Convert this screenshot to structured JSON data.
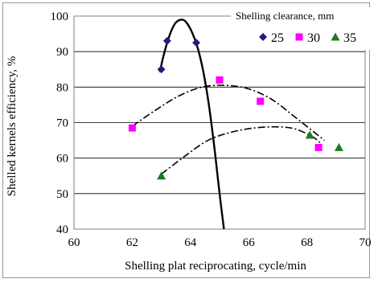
{
  "chart_data": {
    "type": "scatter",
    "title": "",
    "xlabel": "Shelling plat reciprocating, cycle/min",
    "ylabel": "Shelled kernels efficiency, %",
    "xlim": [
      60,
      70
    ],
    "ylim": [
      40,
      100
    ],
    "x_ticks": [
      60,
      62,
      64,
      66,
      68,
      70
    ],
    "y_ticks": [
      40,
      50,
      60,
      70,
      80,
      90,
      100
    ],
    "grid": "horizontal",
    "legend": {
      "title": "Shelling clearance, mm",
      "position": "top-right"
    },
    "series": [
      {
        "name": "25",
        "color": "#1f1f7a",
        "marker": "diamond",
        "line_style": "solid",
        "points": [
          [
            63.0,
            85
          ],
          [
            63.2,
            93
          ],
          [
            64.2,
            92.5
          ]
        ],
        "trend": [
          [
            62.95,
            84.2
          ],
          [
            63.05,
            88
          ],
          [
            63.2,
            92.5
          ],
          [
            63.35,
            96
          ],
          [
            63.5,
            98.2
          ],
          [
            63.7,
            99
          ],
          [
            63.85,
            98.3
          ],
          [
            64.05,
            95.5
          ],
          [
            64.25,
            91
          ],
          [
            64.45,
            84
          ],
          [
            64.65,
            74
          ],
          [
            64.85,
            61
          ],
          [
            65.0,
            50
          ],
          [
            65.15,
            40
          ]
        ]
      },
      {
        "name": "30",
        "color": "#ff00ff",
        "marker": "square",
        "line_style": "dashdot",
        "points": [
          [
            62.0,
            68.5
          ],
          [
            65.0,
            82
          ],
          [
            66.4,
            76
          ],
          [
            68.4,
            63
          ]
        ],
        "trend": [
          [
            62.0,
            69
          ],
          [
            62.8,
            73.5
          ],
          [
            63.6,
            77.5
          ],
          [
            64.4,
            80
          ],
          [
            65.2,
            80.5
          ],
          [
            66.0,
            79.5
          ],
          [
            66.8,
            76.5
          ],
          [
            67.6,
            71.5
          ],
          [
            68.6,
            65
          ]
        ]
      },
      {
        "name": "35",
        "color": "#1f7a1f",
        "marker": "triangle",
        "line_style": "dashdot",
        "points": [
          [
            63.0,
            55
          ],
          [
            68.1,
            66.5
          ],
          [
            69.1,
            63
          ]
        ],
        "trend": [
          [
            63.0,
            55.5
          ],
          [
            63.8,
            60.5
          ],
          [
            64.6,
            65
          ],
          [
            65.4,
            67.3
          ],
          [
            66.2,
            68.5
          ],
          [
            67.0,
            68.8
          ],
          [
            67.6,
            68.2
          ],
          [
            68.2,
            66
          ],
          [
            68.5,
            64
          ]
        ]
      }
    ]
  }
}
